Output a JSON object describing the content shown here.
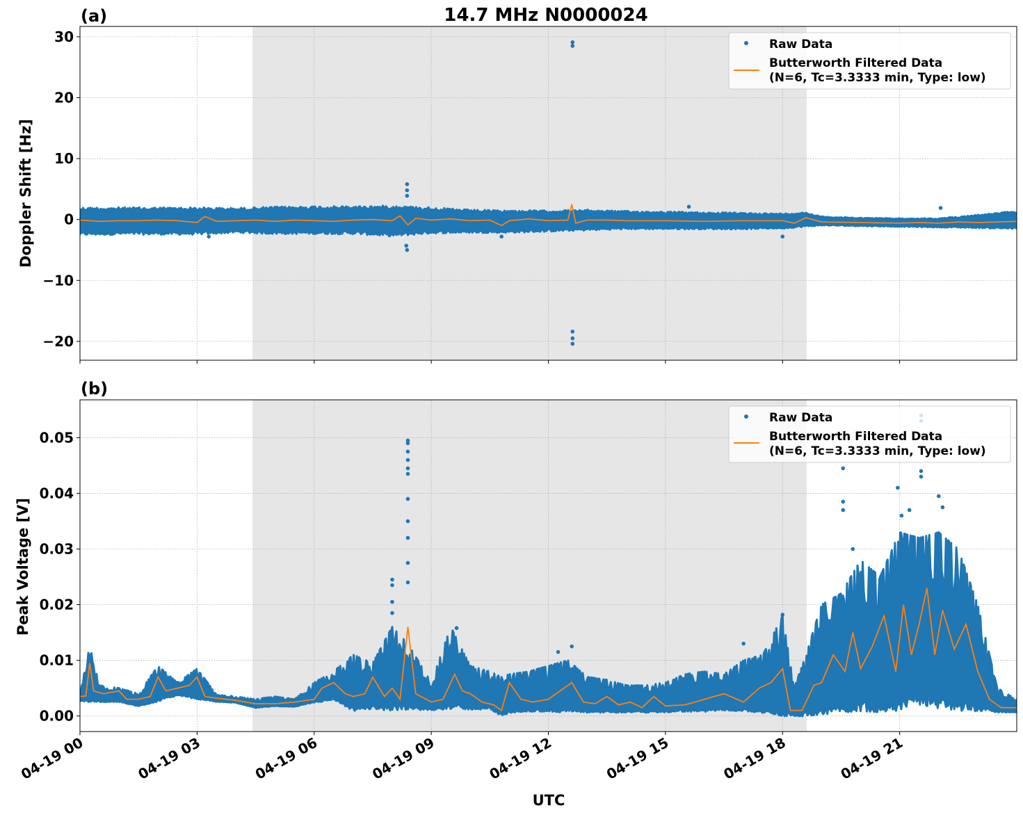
{
  "figure": {
    "title": "14.7 MHz N0000024",
    "xlabel": "UTC",
    "x_tick_labels": [
      "04-19 00",
      "04-19 03",
      "04-19 06",
      "04-19 09",
      "04-19 12",
      "04-19 15",
      "04-19 18",
      "04-19 21"
    ]
  },
  "colors": {
    "raw": "#1f77b4",
    "filtered": "#ff7f0e",
    "shade": "#e6e6e6",
    "grid": "#b0b0b0"
  },
  "legend": {
    "raw_label": "Raw Data",
    "filtered_label_line1": "Butterworth Filtered Data",
    "filtered_label_line2": "(N=6, Tc=3.3333 min, Type: low)"
  },
  "chart_data": [
    {
      "type": "scatter",
      "panel_label": "(a)",
      "ylabel": "Doppler Shift [Hz]",
      "x_unit": "hours UTC on 04-19",
      "xlim": [
        0,
        24
      ],
      "ylim": [
        -23.1,
        31.7
      ],
      "y_ticks": [
        -20,
        -10,
        0,
        10,
        20,
        30
      ],
      "y_tick_labels": [
        "−20",
        "−10",
        "0",
        "10",
        "20",
        "30"
      ],
      "grid": true,
      "legend_position": "top-right",
      "shaded_interval_hours": [
        4.42,
        18.62
      ],
      "series": [
        {
          "name": "Raw Data",
          "style": "points",
          "band_hours": [
            0,
            1,
            2,
            3,
            4,
            5,
            6,
            7,
            8,
            9,
            10,
            11,
            12,
            13,
            14,
            15,
            16,
            17,
            18,
            18.6,
            19,
            20,
            21,
            22,
            23,
            24
          ],
          "band_low": [
            -2.6,
            -2.5,
            -2.5,
            -2.5,
            -2.2,
            -2.4,
            -2.4,
            -2.4,
            -2.8,
            -2.3,
            -2.2,
            -2.2,
            -2.0,
            -1.8,
            -1.6,
            -1.6,
            -1.6,
            -1.6,
            -1.5,
            -1.2,
            -1.0,
            -1.1,
            -1.2,
            -1.3,
            -1.4,
            -1.6
          ],
          "band_high": [
            2.0,
            2.0,
            2.0,
            2.0,
            1.9,
            2.1,
            2.2,
            2.2,
            2.3,
            2.0,
            1.6,
            1.5,
            1.5,
            1.6,
            1.4,
            1.3,
            1.2,
            1.1,
            1.0,
            1.2,
            0.5,
            0.3,
            0.2,
            0.2,
            0.8,
            1.4
          ],
          "outliers": [
            {
              "x": 8.38,
              "y": 5.8
            },
            {
              "x": 8.38,
              "y": 4.8
            },
            {
              "x": 8.38,
              "y": 3.9
            },
            {
              "x": 8.36,
              "y": -4.3
            },
            {
              "x": 8.38,
              "y": -5.0
            },
            {
              "x": 12.62,
              "y": 29.1
            },
            {
              "x": 12.62,
              "y": 28.5
            },
            {
              "x": 12.62,
              "y": -18.4
            },
            {
              "x": 12.62,
              "y": -19.5
            },
            {
              "x": 12.62,
              "y": -20.4
            },
            {
              "x": 10.8,
              "y": -2.8
            },
            {
              "x": 18.0,
              "y": -2.8
            },
            {
              "x": 15.6,
              "y": 2.1
            },
            {
              "x": 3.3,
              "y": -2.8
            },
            {
              "x": 22.05,
              "y": 1.9
            }
          ]
        },
        {
          "name": "Butterworth Filtered Data",
          "style": "line",
          "x": [
            0,
            0.5,
            1,
            1.5,
            2,
            2.5,
            3,
            3.2,
            3.5,
            4,
            4.5,
            5,
            5.5,
            6,
            6.5,
            7,
            7.5,
            8,
            8.2,
            8.4,
            8.6,
            9,
            9.5,
            10,
            10.5,
            10.8,
            11,
            11.5,
            12,
            12.5,
            12.6,
            12.7,
            13,
            13.5,
            14,
            15,
            16,
            17,
            18,
            18.3,
            18.6,
            19,
            20,
            21,
            21.5,
            22,
            22.5,
            23,
            24
          ],
          "y": [
            -0.1,
            -0.3,
            -0.2,
            -0.2,
            -0.1,
            -0.2,
            -0.5,
            0.5,
            -0.3,
            -0.2,
            -0.1,
            -0.3,
            -0.1,
            -0.2,
            -0.3,
            -0.1,
            0.0,
            -0.2,
            0.6,
            -0.9,
            0.2,
            -0.1,
            0.1,
            -0.2,
            -0.1,
            -1.0,
            -0.2,
            0.1,
            -0.2,
            -0.1,
            2.5,
            -0.6,
            -0.1,
            -0.1,
            -0.2,
            -0.2,
            -0.3,
            -0.2,
            -0.2,
            -0.6,
            0.3,
            -0.4,
            -0.5,
            -0.6,
            -0.5,
            -0.6,
            -0.4,
            -0.5,
            -0.3
          ]
        }
      ]
    },
    {
      "type": "scatter",
      "panel_label": "(b)",
      "ylabel": "Peak Voltage [V]",
      "xlabel": "UTC",
      "x_unit": "hours UTC on 04-19",
      "xlim": [
        0,
        24
      ],
      "ylim": [
        -0.0028,
        0.0568
      ],
      "y_ticks": [
        0.0,
        0.01,
        0.02,
        0.03,
        0.04,
        0.05
      ],
      "y_tick_labels": [
        "0.00",
        "0.01",
        "0.02",
        "0.03",
        "0.04",
        "0.05"
      ],
      "grid": true,
      "legend_position": "top-right",
      "shaded_interval_hours": [
        4.42,
        18.62
      ],
      "series": [
        {
          "name": "Raw Data",
          "style": "points",
          "band_hours": [
            0,
            0.25,
            0.5,
            1,
            1.5,
            2,
            2.5,
            3,
            3.5,
            4,
            4.5,
            5,
            5.5,
            6,
            6.5,
            7,
            7.5,
            8,
            8.4,
            9,
            9.5,
            10,
            10.5,
            10.8,
            11,
            11.5,
            12,
            12.5,
            13,
            13.5,
            14,
            14.5,
            15,
            15.5,
            16,
            16.5,
            17,
            17.5,
            18,
            18.3,
            18.6,
            19,
            19.5,
            20,
            20.5,
            21,
            21.5,
            22,
            22.5,
            23,
            23.5,
            24
          ],
          "band_low": [
            0.0027,
            0.0028,
            0.0026,
            0.0026,
            0.0018,
            0.0028,
            0.0038,
            0.0032,
            0.0026,
            0.0024,
            0.0015,
            0.0018,
            0.0017,
            0.0025,
            0.003,
            0.0012,
            0.0016,
            0.0014,
            0.0015,
            0.0012,
            0.0018,
            0.0014,
            0.0014,
            0.0002,
            0.0008,
            0.001,
            0.001,
            0.001,
            0.0008,
            0.0008,
            0.0008,
            0.0008,
            0.0008,
            0.001,
            0.001,
            0.0012,
            0.0012,
            0.0008,
            0.0005,
            0.0002,
            0.0003,
            0.001,
            0.0012,
            0.0018,
            0.0015,
            0.002,
            0.003,
            0.0025,
            0.002,
            0.0015,
            0.0008,
            0.0007
          ],
          "band_high": [
            0.0045,
            0.0125,
            0.0055,
            0.005,
            0.004,
            0.009,
            0.006,
            0.0085,
            0.0038,
            0.0035,
            0.003,
            0.0035,
            0.003,
            0.006,
            0.008,
            0.011,
            0.0095,
            0.016,
            0.013,
            0.006,
            0.016,
            0.009,
            0.008,
            0.007,
            0.0075,
            0.008,
            0.009,
            0.01,
            0.007,
            0.0065,
            0.0055,
            0.0055,
            0.006,
            0.0075,
            0.008,
            0.0075,
            0.01,
            0.011,
            0.018,
            0.005,
            0.011,
            0.02,
            0.022,
            0.028,
            0.025,
            0.033,
            0.032,
            0.033,
            0.03,
            0.02,
            0.005,
            0.003
          ],
          "outliers": [
            {
              "x": 8.4,
              "y": 0.0495
            },
            {
              "x": 8.4,
              "y": 0.049
            },
            {
              "x": 8.4,
              "y": 0.0475
            },
            {
              "x": 8.4,
              "y": 0.046
            },
            {
              "x": 8.4,
              "y": 0.0445
            },
            {
              "x": 8.4,
              "y": 0.0435
            },
            {
              "x": 8.4,
              "y": 0.039
            },
            {
              "x": 8.4,
              "y": 0.035
            },
            {
              "x": 8.4,
              "y": 0.032
            },
            {
              "x": 8.4,
              "y": 0.0275
            },
            {
              "x": 8.4,
              "y": 0.024
            },
            {
              "x": 8.0,
              "y": 0.0245
            },
            {
              "x": 8.0,
              "y": 0.0235
            },
            {
              "x": 8.0,
              "y": 0.0205
            },
            {
              "x": 8.0,
              "y": 0.0185
            },
            {
              "x": 21.55,
              "y": 0.054
            },
            {
              "x": 21.55,
              "y": 0.053
            },
            {
              "x": 21.55,
              "y": 0.0505
            },
            {
              "x": 21.55,
              "y": 0.044
            },
            {
              "x": 21.55,
              "y": 0.043
            },
            {
              "x": 19.55,
              "y": 0.0445
            },
            {
              "x": 19.55,
              "y": 0.0385
            },
            {
              "x": 19.55,
              "y": 0.037
            },
            {
              "x": 19.8,
              "y": 0.03
            },
            {
              "x": 20.95,
              "y": 0.041
            },
            {
              "x": 21.05,
              "y": 0.036
            },
            {
              "x": 21.25,
              "y": 0.037
            },
            {
              "x": 22.0,
              "y": 0.0395
            },
            {
              "x": 22.1,
              "y": 0.0375
            },
            {
              "x": 22.2,
              "y": 0.027
            },
            {
              "x": 12.6,
              "y": 0.0125
            },
            {
              "x": 12.25,
              "y": 0.0115
            },
            {
              "x": 9.65,
              "y": 0.0158
            },
            {
              "x": 17.0,
              "y": 0.013
            },
            {
              "x": 18.0,
              "y": 0.0182
            }
          ]
        },
        {
          "name": "Butterworth Filtered Data",
          "style": "line",
          "x": [
            0,
            0.15,
            0.25,
            0.35,
            0.6,
            1.0,
            1.2,
            1.5,
            1.8,
            2.0,
            2.2,
            2.5,
            2.8,
            3.0,
            3.2,
            3.5,
            4.0,
            4.5,
            5.0,
            5.5,
            6.0,
            6.2,
            6.5,
            6.8,
            7.0,
            7.3,
            7.5,
            7.8,
            8.0,
            8.2,
            8.4,
            8.6,
            9.0,
            9.3,
            9.6,
            9.8,
            10.0,
            10.3,
            10.6,
            10.8,
            11.0,
            11.3,
            11.6,
            12.0,
            12.3,
            12.6,
            12.9,
            13.2,
            13.5,
            13.8,
            14.1,
            14.4,
            14.7,
            15.0,
            15.5,
            16.0,
            16.5,
            17.0,
            17.4,
            17.7,
            18.0,
            18.2,
            18.5,
            18.8,
            19.0,
            19.3,
            19.6,
            19.8,
            20.0,
            20.3,
            20.6,
            20.9,
            21.1,
            21.3,
            21.5,
            21.7,
            21.9,
            22.1,
            22.4,
            22.7,
            23.0,
            23.3,
            23.6,
            24.0
          ],
          "y": [
            0.0035,
            0.0036,
            0.0095,
            0.0045,
            0.004,
            0.0045,
            0.003,
            0.003,
            0.0035,
            0.007,
            0.0045,
            0.005,
            0.0055,
            0.007,
            0.0035,
            0.0032,
            0.0028,
            0.0022,
            0.0022,
            0.0025,
            0.003,
            0.005,
            0.006,
            0.004,
            0.0035,
            0.004,
            0.007,
            0.0035,
            0.005,
            0.003,
            0.016,
            0.004,
            0.0025,
            0.003,
            0.0075,
            0.0045,
            0.004,
            0.0025,
            0.002,
            0.001,
            0.006,
            0.003,
            0.0025,
            0.003,
            0.0045,
            0.006,
            0.0025,
            0.0022,
            0.0035,
            0.002,
            0.0025,
            0.0015,
            0.0035,
            0.0018,
            0.002,
            0.003,
            0.004,
            0.0025,
            0.005,
            0.006,
            0.0085,
            0.001,
            0.001,
            0.0055,
            0.006,
            0.011,
            0.008,
            0.015,
            0.0085,
            0.0125,
            0.018,
            0.008,
            0.02,
            0.011,
            0.0165,
            0.023,
            0.011,
            0.019,
            0.012,
            0.0165,
            0.008,
            0.003,
            0.0015,
            0.0015
          ]
        }
      ]
    }
  ]
}
